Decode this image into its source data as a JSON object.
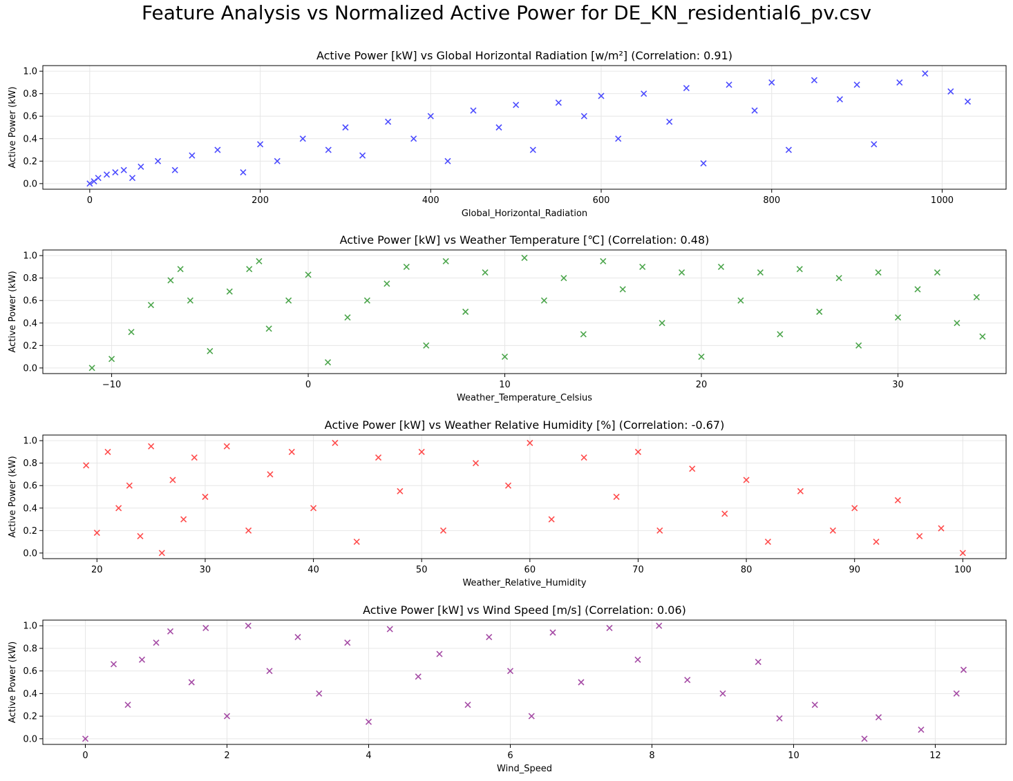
{
  "figure": {
    "title": "Feature Analysis vs Normalized Active Power for DE_KN_residential6_pv.csv"
  },
  "chart_data": [
    {
      "type": "scatter",
      "title": "Active Power [kW] vs Global Horizontal Radiation [w/m²] (Correlation: 0.91)",
      "xlabel": "Global_Horizontal_Radiation",
      "ylabel": "Active Power (kW)",
      "color": "#0000ff",
      "marker": "x",
      "xlim": [
        -55,
        1075
      ],
      "ylim": [
        -0.05,
        1.05
      ],
      "xticks": [
        0,
        200,
        400,
        600,
        800,
        1000
      ],
      "yticks": [
        0.0,
        0.2,
        0.4,
        0.6,
        0.8,
        1.0
      ],
      "grid": true,
      "points": [
        [
          0,
          0.0
        ],
        [
          5,
          0.02
        ],
        [
          10,
          0.05
        ],
        [
          20,
          0.08
        ],
        [
          30,
          0.1
        ],
        [
          40,
          0.12
        ],
        [
          50,
          0.05
        ],
        [
          60,
          0.15
        ],
        [
          80,
          0.2
        ],
        [
          100,
          0.12
        ],
        [
          120,
          0.25
        ],
        [
          150,
          0.3
        ],
        [
          180,
          0.1
        ],
        [
          200,
          0.35
        ],
        [
          220,
          0.2
        ],
        [
          250,
          0.4
        ],
        [
          280,
          0.3
        ],
        [
          300,
          0.5
        ],
        [
          320,
          0.25
        ],
        [
          350,
          0.55
        ],
        [
          380,
          0.4
        ],
        [
          400,
          0.6
        ],
        [
          420,
          0.2
        ],
        [
          450,
          0.65
        ],
        [
          480,
          0.5
        ],
        [
          500,
          0.7
        ],
        [
          520,
          0.3
        ],
        [
          550,
          0.72
        ],
        [
          580,
          0.6
        ],
        [
          600,
          0.78
        ],
        [
          620,
          0.4
        ],
        [
          650,
          0.8
        ],
        [
          680,
          0.55
        ],
        [
          700,
          0.85
        ],
        [
          720,
          0.18
        ],
        [
          750,
          0.88
        ],
        [
          780,
          0.65
        ],
        [
          800,
          0.9
        ],
        [
          820,
          0.3
        ],
        [
          850,
          0.92
        ],
        [
          880,
          0.75
        ],
        [
          900,
          0.88
        ],
        [
          920,
          0.35
        ],
        [
          950,
          0.9
        ],
        [
          980,
          0.98
        ],
        [
          1010,
          0.82
        ],
        [
          1030,
          0.73
        ]
      ]
    },
    {
      "type": "scatter",
      "title": "Active Power [kW] vs Weather Temperature [℃] (Correlation: 0.48)",
      "xlabel": "Weather_Temperature_Celsius",
      "ylabel": "Active Power (kW)",
      "color": "#008000",
      "marker": "x",
      "xlim": [
        -13.5,
        35.5
      ],
      "ylim": [
        -0.05,
        1.05
      ],
      "xticks": [
        -10,
        0,
        10,
        20,
        30
      ],
      "yticks": [
        0.0,
        0.2,
        0.4,
        0.6,
        0.8,
        1.0
      ],
      "grid": true,
      "points": [
        [
          -11,
          0.0
        ],
        [
          -10,
          0.08
        ],
        [
          -9,
          0.32
        ],
        [
          -8,
          0.56
        ],
        [
          -7,
          0.78
        ],
        [
          -6.5,
          0.88
        ],
        [
          -6,
          0.6
        ],
        [
          -5,
          0.15
        ],
        [
          -4,
          0.68
        ],
        [
          -3,
          0.88
        ],
        [
          -2.5,
          0.95
        ],
        [
          -2,
          0.35
        ],
        [
          -1,
          0.6
        ],
        [
          0,
          0.83
        ],
        [
          1,
          0.05
        ],
        [
          2,
          0.45
        ],
        [
          3,
          0.6
        ],
        [
          4,
          0.75
        ],
        [
          5,
          0.9
        ],
        [
          6,
          0.2
        ],
        [
          7,
          0.95
        ],
        [
          8,
          0.5
        ],
        [
          9,
          0.85
        ],
        [
          10,
          0.1
        ],
        [
          11,
          0.98
        ],
        [
          12,
          0.6
        ],
        [
          13,
          0.8
        ],
        [
          14,
          0.3
        ],
        [
          15,
          0.95
        ],
        [
          16,
          0.7
        ],
        [
          17,
          0.9
        ],
        [
          18,
          0.4
        ],
        [
          19,
          0.85
        ],
        [
          20,
          0.1
        ],
        [
          21,
          0.9
        ],
        [
          22,
          0.6
        ],
        [
          23,
          0.85
        ],
        [
          24,
          0.3
        ],
        [
          25,
          0.88
        ],
        [
          26,
          0.5
        ],
        [
          27,
          0.8
        ],
        [
          28,
          0.2
        ],
        [
          29,
          0.85
        ],
        [
          30,
          0.45
        ],
        [
          31,
          0.7
        ],
        [
          32,
          0.85
        ],
        [
          33,
          0.4
        ],
        [
          34,
          0.63
        ],
        [
          34.3,
          0.28
        ]
      ]
    },
    {
      "type": "scatter",
      "title": "Active Power [kW] vs Weather Relative Humidity [%] (Correlation: -0.67)",
      "xlabel": "Weather_Relative_Humidity",
      "ylabel": "Active Power (kW)",
      "color": "#ff0000",
      "marker": "x",
      "xlim": [
        15,
        104
      ],
      "ylim": [
        -0.05,
        1.05
      ],
      "xticks": [
        20,
        30,
        40,
        50,
        60,
        70,
        80,
        90,
        100
      ],
      "yticks": [
        0.0,
        0.2,
        0.4,
        0.6,
        0.8,
        1.0
      ],
      "grid": true,
      "points": [
        [
          19,
          0.78
        ],
        [
          20,
          0.18
        ],
        [
          21,
          0.9
        ],
        [
          22,
          0.4
        ],
        [
          23,
          0.6
        ],
        [
          24,
          0.15
        ],
        [
          25,
          0.95
        ],
        [
          26,
          0.0
        ],
        [
          27,
          0.65
        ],
        [
          28,
          0.3
        ],
        [
          29,
          0.85
        ],
        [
          30,
          0.5
        ],
        [
          32,
          0.95
        ],
        [
          34,
          0.2
        ],
        [
          36,
          0.7
        ],
        [
          38,
          0.9
        ],
        [
          40,
          0.4
        ],
        [
          42,
          0.98
        ],
        [
          44,
          0.1
        ],
        [
          46,
          0.85
        ],
        [
          48,
          0.55
        ],
        [
          50,
          0.9
        ],
        [
          52,
          0.2
        ],
        [
          55,
          0.8
        ],
        [
          58,
          0.6
        ],
        [
          60,
          0.98
        ],
        [
          62,
          0.3
        ],
        [
          65,
          0.85
        ],
        [
          68,
          0.5
        ],
        [
          70,
          0.9
        ],
        [
          72,
          0.2
        ],
        [
          75,
          0.75
        ],
        [
          78,
          0.35
        ],
        [
          80,
          0.65
        ],
        [
          82,
          0.1
        ],
        [
          85,
          0.55
        ],
        [
          88,
          0.2
        ],
        [
          90,
          0.4
        ],
        [
          92,
          0.1
        ],
        [
          94,
          0.47
        ],
        [
          96,
          0.15
        ],
        [
          98,
          0.22
        ],
        [
          100,
          0.0
        ]
      ]
    },
    {
      "type": "scatter",
      "title": "Active Power [kW] vs Wind Speed [m/s] (Correlation: 0.06)",
      "xlabel": "Wind_Speed",
      "ylabel": "Active Power (kW)",
      "color": "#800080",
      "marker": "x",
      "xlim": [
        -0.6,
        13.0
      ],
      "ylim": [
        -0.05,
        1.05
      ],
      "xticks": [
        0,
        2,
        4,
        6,
        8,
        10,
        12
      ],
      "yticks": [
        0.0,
        0.2,
        0.4,
        0.6,
        0.8,
        1.0
      ],
      "grid": true,
      "points": [
        [
          0,
          0.0
        ],
        [
          0.4,
          0.66
        ],
        [
          0.6,
          0.3
        ],
        [
          0.8,
          0.7
        ],
        [
          1.0,
          0.85
        ],
        [
          1.2,
          0.95
        ],
        [
          1.5,
          0.5
        ],
        [
          1.7,
          0.98
        ],
        [
          2.0,
          0.2
        ],
        [
          2.3,
          1.0
        ],
        [
          2.6,
          0.6
        ],
        [
          3.0,
          0.9
        ],
        [
          3.3,
          0.4
        ],
        [
          3.7,
          0.85
        ],
        [
          4.0,
          0.15
        ],
        [
          4.3,
          0.97
        ],
        [
          4.7,
          0.55
        ],
        [
          5.0,
          0.75
        ],
        [
          5.4,
          0.3
        ],
        [
          5.7,
          0.9
        ],
        [
          6.0,
          0.6
        ],
        [
          6.3,
          0.2
        ],
        [
          6.6,
          0.94
        ],
        [
          7.0,
          0.5
        ],
        [
          7.4,
          0.98
        ],
        [
          7.8,
          0.7
        ],
        [
          8.1,
          1.0
        ],
        [
          8.5,
          0.52
        ],
        [
          9.0,
          0.4
        ],
        [
          9.5,
          0.68
        ],
        [
          9.8,
          0.18
        ],
        [
          10.3,
          0.3
        ],
        [
          11.0,
          0.0
        ],
        [
          11.2,
          0.19
        ],
        [
          11.8,
          0.08
        ],
        [
          12.3,
          0.4
        ],
        [
          12.4,
          0.61
        ]
      ]
    }
  ]
}
